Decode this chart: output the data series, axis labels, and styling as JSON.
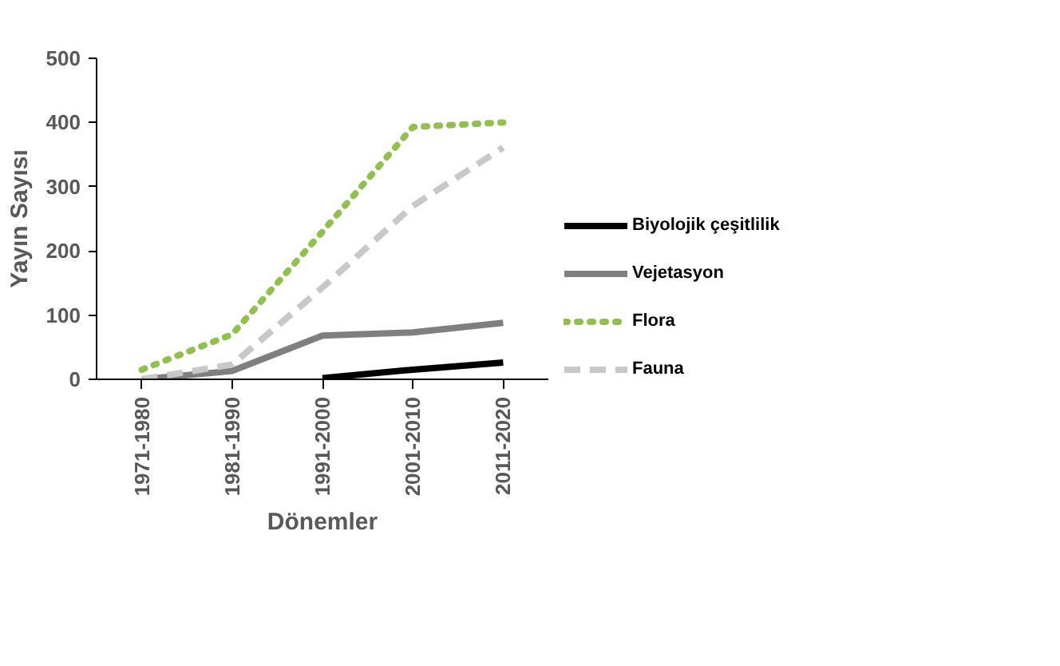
{
  "chart_data": {
    "type": "line",
    "xlabel": "Dönemler",
    "ylabel": "Yayın Sayısı",
    "categories": [
      "1971-1980",
      "1981-1990",
      "1991-2000",
      "2001-2010",
      "2011-2020"
    ],
    "series": [
      {
        "name": "Biyolojik çeşitlilik",
        "color": "#000000",
        "values": [
          null,
          null,
          2,
          15,
          26
        ],
        "line_style": "solid"
      },
      {
        "name": "Vejetasyon",
        "color": "#7f7f7f",
        "values": [
          0,
          13,
          68,
          73,
          88
        ],
        "line_style": "solid"
      },
      {
        "name": "Flora",
        "color": "#92c050",
        "values": [
          15,
          70,
          230,
          393,
          400
        ],
        "line_style": "dotted"
      },
      {
        "name": "Fauna",
        "color": "#c8c8c8",
        "values": [
          0,
          23,
          143,
          270,
          361
        ],
        "line_style": "dashed"
      }
    ],
    "ylim": [
      0,
      500
    ],
    "yticks": [
      0,
      100,
      200,
      300,
      400,
      500
    ],
    "grid": false,
    "legend": "right"
  }
}
